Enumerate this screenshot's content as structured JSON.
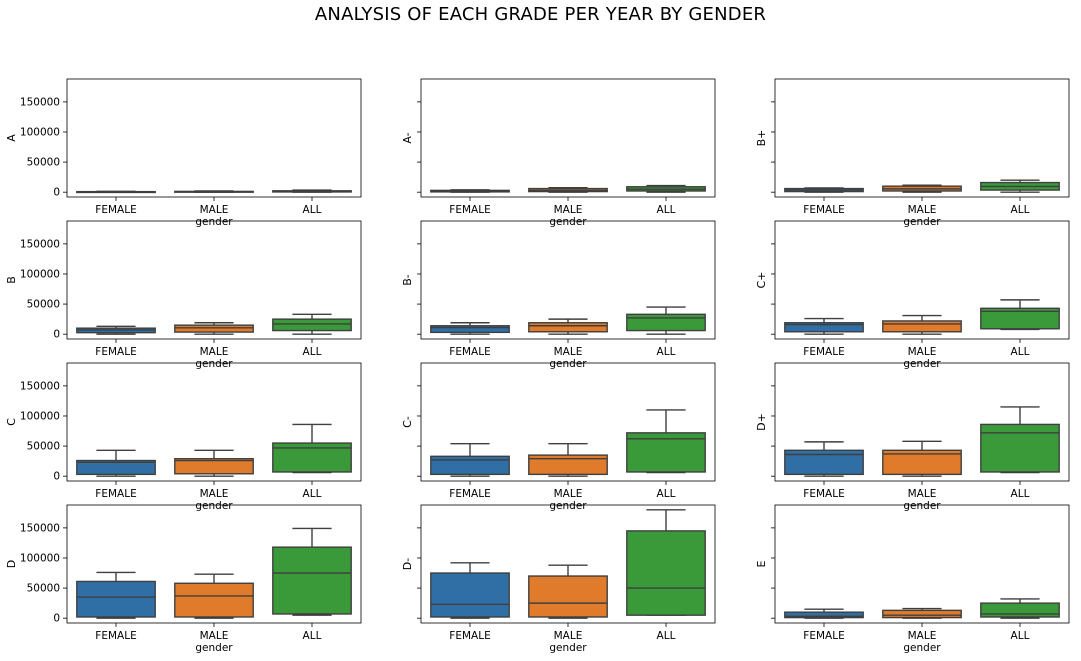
{
  "suptitle": "ANALYSIS OF EACH GRADE PER YEAR BY GENDER",
  "chart_data": {
    "type": "box",
    "shared_y": true,
    "ylim": [
      -8000,
      188000
    ],
    "yticks": [
      0,
      50000,
      100000,
      150000
    ],
    "ytick_labels": [
      "0",
      "50000",
      "100000",
      "150000"
    ],
    "categories": [
      "FEMALE",
      "MALE",
      "ALL"
    ],
    "xlabel": "gender",
    "colors": {
      "FEMALE": "#2f6fa5",
      "MALE": "#e07b2c",
      "ALL": "#3a9a3a"
    },
    "subplots": [
      {
        "grade": "A",
        "boxes": [
          {
            "whislo": 0,
            "q1": 150,
            "med": 500,
            "q3": 900,
            "whishi": 1500
          },
          {
            "whislo": 0,
            "q1": 200,
            "med": 700,
            "q3": 1300,
            "whishi": 2000
          },
          {
            "whislo": 0,
            "q1": 400,
            "med": 1200,
            "q3": 2300,
            "whishi": 3500
          }
        ]
      },
      {
        "grade": "A-",
        "boxes": [
          {
            "whislo": 0,
            "q1": 500,
            "med": 1500,
            "q3": 3000,
            "whishi": 4000
          },
          {
            "whislo": 0,
            "q1": 1000,
            "med": 3000,
            "q3": 6000,
            "whishi": 7500
          },
          {
            "whislo": 0,
            "q1": 2000,
            "med": 5000,
            "q3": 9000,
            "whishi": 11000
          }
        ]
      },
      {
        "grade": "B+",
        "boxes": [
          {
            "whislo": 0,
            "q1": 1000,
            "med": 3500,
            "q3": 6000,
            "whishi": 7000
          },
          {
            "whislo": 0,
            "q1": 2000,
            "med": 5500,
            "q3": 10000,
            "whishi": 11500
          },
          {
            "whislo": 0,
            "q1": 3500,
            "med": 9500,
            "q3": 16000,
            "whishi": 20000
          }
        ]
      },
      {
        "grade": "B",
        "boxes": [
          {
            "whislo": 0,
            "q1": 2500,
            "med": 7000,
            "q3": 10000,
            "whishi": 13000
          },
          {
            "whislo": 0,
            "q1": 3500,
            "med": 10500,
            "q3": 15000,
            "whishi": 19000
          },
          {
            "whislo": 0,
            "q1": 6000,
            "med": 17000,
            "q3": 25000,
            "whishi": 33000
          }
        ]
      },
      {
        "grade": "B-",
        "boxes": [
          {
            "whislo": 0,
            "q1": 3000,
            "med": 11000,
            "q3": 14000,
            "whishi": 19000
          },
          {
            "whislo": 0,
            "q1": 4000,
            "med": 14000,
            "q3": 19000,
            "whishi": 25000
          },
          {
            "whislo": 0,
            "q1": 6000,
            "med": 27000,
            "q3": 33000,
            "whishi": 45000
          }
        ]
      },
      {
        "grade": "C+",
        "boxes": [
          {
            "whislo": 0,
            "q1": 4000,
            "med": 16000,
            "q3": 19000,
            "whishi": 26000
          },
          {
            "whislo": 0,
            "q1": 4000,
            "med": 17000,
            "q3": 22000,
            "whishi": 31000
          },
          {
            "whislo": 8000,
            "q1": 9000,
            "med": 38000,
            "q3": 43000,
            "whishi": 57000
          }
        ]
      },
      {
        "grade": "C",
        "boxes": [
          {
            "whislo": 0,
            "q1": 3000,
            "med": 23000,
            "q3": 26000,
            "whishi": 43000
          },
          {
            "whislo": 0,
            "q1": 4000,
            "med": 26000,
            "q3": 29000,
            "whishi": 43000
          },
          {
            "whislo": 6000,
            "q1": 7000,
            "med": 47000,
            "q3": 55000,
            "whishi": 86000
          }
        ]
      },
      {
        "grade": "C-",
        "boxes": [
          {
            "whislo": 0,
            "q1": 3000,
            "med": 27000,
            "q3": 33000,
            "whishi": 54000
          },
          {
            "whislo": 0,
            "q1": 3000,
            "med": 29000,
            "q3": 35000,
            "whishi": 54000
          },
          {
            "whislo": 6000,
            "q1": 7000,
            "med": 62000,
            "q3": 72000,
            "whishi": 110000
          }
        ]
      },
      {
        "grade": "D+",
        "boxes": [
          {
            "whislo": 0,
            "q1": 3000,
            "med": 36000,
            "q3": 43000,
            "whishi": 57000
          },
          {
            "whislo": 0,
            "q1": 3000,
            "med": 37000,
            "q3": 43000,
            "whishi": 58000
          },
          {
            "whislo": 6000,
            "q1": 7000,
            "med": 72000,
            "q3": 86000,
            "whishi": 115000
          }
        ]
      },
      {
        "grade": "D",
        "boxes": [
          {
            "whislo": 0,
            "q1": 2000,
            "med": 35000,
            "q3": 61000,
            "whishi": 76000
          },
          {
            "whislo": 0,
            "q1": 2000,
            "med": 37000,
            "q3": 58000,
            "whishi": 73000
          },
          {
            "whislo": 5000,
            "q1": 7000,
            "med": 75000,
            "q3": 118000,
            "whishi": 149000
          }
        ]
      },
      {
        "grade": "D-",
        "boxes": [
          {
            "whislo": 0,
            "q1": 2000,
            "med": 23000,
            "q3": 75000,
            "whishi": 92000
          },
          {
            "whislo": 0,
            "q1": 2000,
            "med": 25000,
            "q3": 70000,
            "whishi": 88000
          },
          {
            "whislo": 5000,
            "q1": 5000,
            "med": 50000,
            "q3": 145000,
            "whishi": 180000
          }
        ]
      },
      {
        "grade": "E",
        "boxes": [
          {
            "whislo": 0,
            "q1": 1000,
            "med": 3000,
            "q3": 10000,
            "whishi": 15000
          },
          {
            "whislo": 0,
            "q1": 1000,
            "med": 5000,
            "q3": 13000,
            "whishi": 16000
          },
          {
            "whislo": 0,
            "q1": 2000,
            "med": 7000,
            "q3": 25000,
            "whishi": 32000
          }
        ]
      }
    ]
  }
}
